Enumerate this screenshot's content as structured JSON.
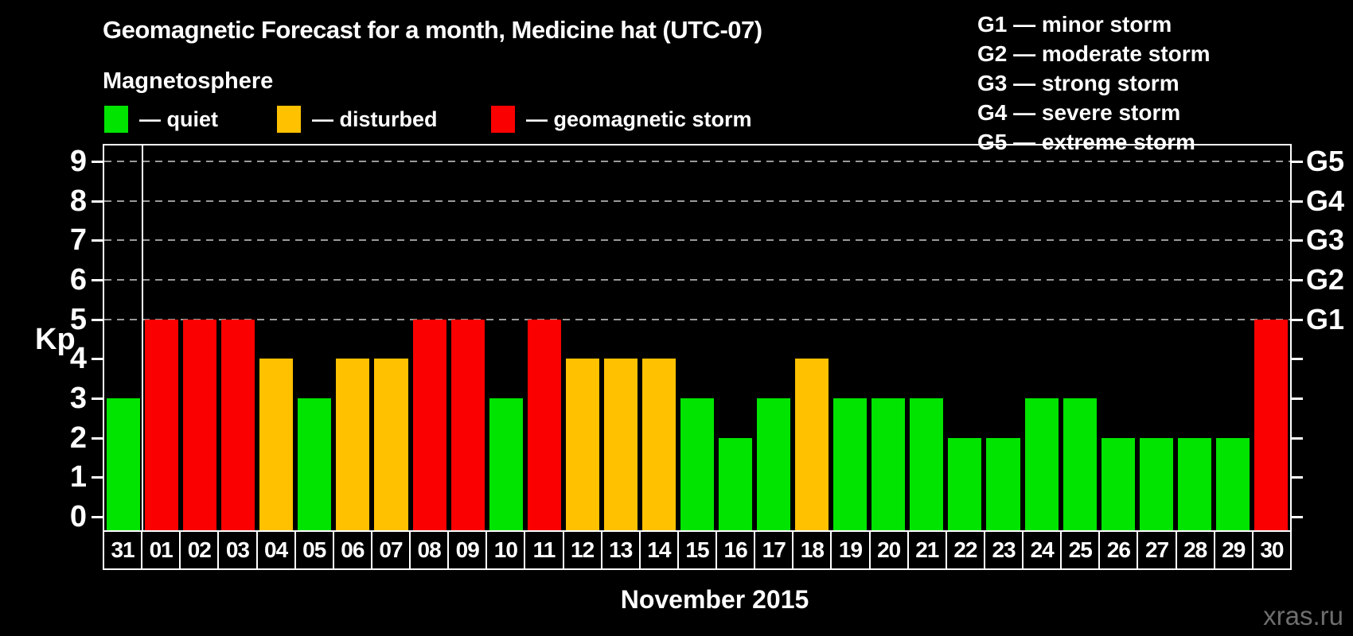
{
  "header": {
    "title": "Geomagnetic Forecast for a month, Medicine hat (UTC-07)",
    "subtitle": "Magnetosphere"
  },
  "legend": {
    "quiet": {
      "label": "— quiet",
      "color": "#00e400"
    },
    "disturbed": {
      "label": "— disturbed",
      "color": "#ffc100"
    },
    "storm": {
      "label": "— geomagnetic storm",
      "color": "#fa0000"
    }
  },
  "storm_scale_legend": [
    "G1 — minor storm",
    "G2 — moderate storm",
    "G3 — strong storm",
    "G4 — severe storm",
    "G5 — extreme storm"
  ],
  "axes": {
    "y_label": "Kp",
    "y_ticks": [
      0,
      1,
      2,
      3,
      4,
      5,
      6,
      7,
      8,
      9
    ],
    "right_labels": [
      {
        "text": "G1",
        "kp": 5
      },
      {
        "text": "G2",
        "kp": 6
      },
      {
        "text": "G3",
        "kp": 7
      },
      {
        "text": "G4",
        "kp": 8
      },
      {
        "text": "G5",
        "kp": 9
      }
    ],
    "x_title": "November 2015"
  },
  "watermark": "xras.ru",
  "chart_data": {
    "type": "bar",
    "title": "Geomagnetic Forecast for a month, Medicine hat (UTC-07)",
    "xlabel": "November 2015",
    "ylabel": "Kp",
    "ylim": [
      0,
      9.4
    ],
    "grid": "dashed horizontal lines at Kp 5-9 (G1-G5 levels)",
    "gridlines_at": [
      5,
      6,
      7,
      8,
      9
    ],
    "legend_position": "top-left",
    "categories": [
      "31",
      "01",
      "02",
      "03",
      "04",
      "05",
      "06",
      "07",
      "08",
      "09",
      "10",
      "11",
      "12",
      "13",
      "14",
      "15",
      "16",
      "17",
      "18",
      "19",
      "20",
      "21",
      "22",
      "23",
      "24",
      "25",
      "26",
      "27",
      "28",
      "29",
      "30"
    ],
    "values": [
      3,
      5,
      5,
      5,
      4,
      3,
      4,
      4,
      5,
      5,
      3,
      5,
      4,
      4,
      4,
      3,
      2,
      3,
      4,
      3,
      3,
      3,
      2,
      2,
      3,
      3,
      2,
      2,
      2,
      2,
      5
    ],
    "statuses": [
      "quiet",
      "storm",
      "storm",
      "storm",
      "disturbed",
      "quiet",
      "disturbed",
      "disturbed",
      "storm",
      "storm",
      "quiet",
      "storm",
      "disturbed",
      "disturbed",
      "disturbed",
      "quiet",
      "quiet",
      "quiet",
      "disturbed",
      "quiet",
      "quiet",
      "quiet",
      "quiet",
      "quiet",
      "quiet",
      "quiet",
      "quiet",
      "quiet",
      "quiet",
      "quiet",
      "storm"
    ],
    "status_colors": {
      "quiet": "#00e400",
      "disturbed": "#ffc100",
      "storm": "#fa0000"
    },
    "month_separator_after_index": 0
  }
}
